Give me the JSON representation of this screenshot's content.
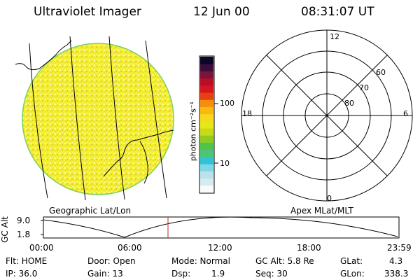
{
  "header": {
    "instrument": "Ultraviolet Imager",
    "date": "12 Jun 00",
    "time": "08:31:07 UT"
  },
  "colorbar": {
    "unit_label": "photon cm⁻²s⁻¹",
    "ticks": [
      "100",
      "10"
    ],
    "colors": [
      "#fafafa",
      "#d7ebef",
      "#b8e3ea",
      "#7fd6e6",
      "#2fc3d6",
      "#4cc47a",
      "#52c24a",
      "#8dcc24",
      "#c8d916",
      "#e6e61a",
      "#f8d81c",
      "#f9b90f",
      "#f58e0c",
      "#e5420f",
      "#d8141e",
      "#b80e27",
      "#7a143a",
      "#3b0d3a",
      "#0c0626"
    ]
  },
  "panels": {
    "left_caption": "Geographic Lat/Lon",
    "right_caption": "Apex MLat/MLT",
    "mlt_labels": {
      "top": "12",
      "left": "18",
      "right": "6",
      "bottom": "0"
    },
    "lat_labels": [
      "60",
      "70",
      "80"
    ]
  },
  "timeline": {
    "y_label": "GC Alt",
    "y_ticks": [
      "9.0",
      "1.8"
    ],
    "x_ticks": [
      "00:00",
      "06:00",
      "12:00",
      "18:00",
      "23:59"
    ],
    "marker_color": "#d22020"
  },
  "status": {
    "row1": {
      "flt": "Flt: HOME",
      "door": "Door: Open",
      "mode": "Mode: Normal",
      "gcalt": "GC Alt: 5.8 Re",
      "glat_label": "GLat:",
      "glat_value": "4.3"
    },
    "row2": {
      "ip": "IP: 36.0",
      "gain": "Gain: 13",
      "dsp_label": "Dsp:",
      "dsp_value": "1.9",
      "seq": "Seq: 30",
      "glon_label": "GLon:",
      "glon_value": "338.3"
    }
  }
}
